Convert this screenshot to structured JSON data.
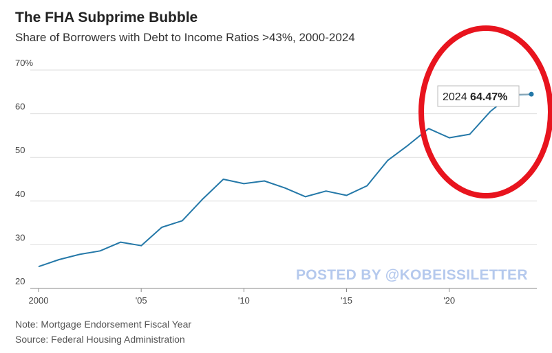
{
  "chart_data": {
    "type": "line",
    "title": "The FHA Subprime Bubble",
    "subtitle": "Share of Borrowers with Debt to Income Ratios >43%, 2000-2024",
    "xlabel": "",
    "ylabel": "",
    "ylim": [
      20,
      70
    ],
    "xlim": [
      2000,
      2024
    ],
    "yticks": [
      "20",
      "30",
      "40",
      "50",
      "60",
      "70%"
    ],
    "xticks": [
      "2000",
      "'05",
      "'10",
      "'15",
      "'20"
    ],
    "grid": true,
    "series": [
      {
        "color": "#2478a8",
        "x": [
          2000,
          2001,
          2002,
          2003,
          2004,
          2005,
          2006,
          2007,
          2008,
          2009,
          2010,
          2011,
          2012,
          2013,
          2014,
          2015,
          2016,
          2017,
          2018,
          2019,
          2020,
          2021,
          2022,
          2023,
          2024
        ],
        "values": [
          25.0,
          26.6,
          27.8,
          28.6,
          30.6,
          29.8,
          34.0,
          35.5,
          40.5,
          45.0,
          44.0,
          44.6,
          43.0,
          41.0,
          42.3,
          41.3,
          43.5,
          49.3,
          52.8,
          56.6,
          54.5,
          55.3,
          60.5,
          64.3,
          64.47
        ]
      }
    ],
    "annotation": {
      "year": "2024",
      "value": "64.47%"
    }
  },
  "notes": {
    "note": "Note: Mortgage Endorsement Fiscal Year",
    "source": "Source: Federal Housing Administration"
  },
  "watermark": "POSTED BY @KOBEISSILETTER",
  "colors": {
    "line": "#2478a8",
    "grid": "#dddddd",
    "highlight_circle": "#e8141e",
    "watermark": "#aec4ec"
  }
}
